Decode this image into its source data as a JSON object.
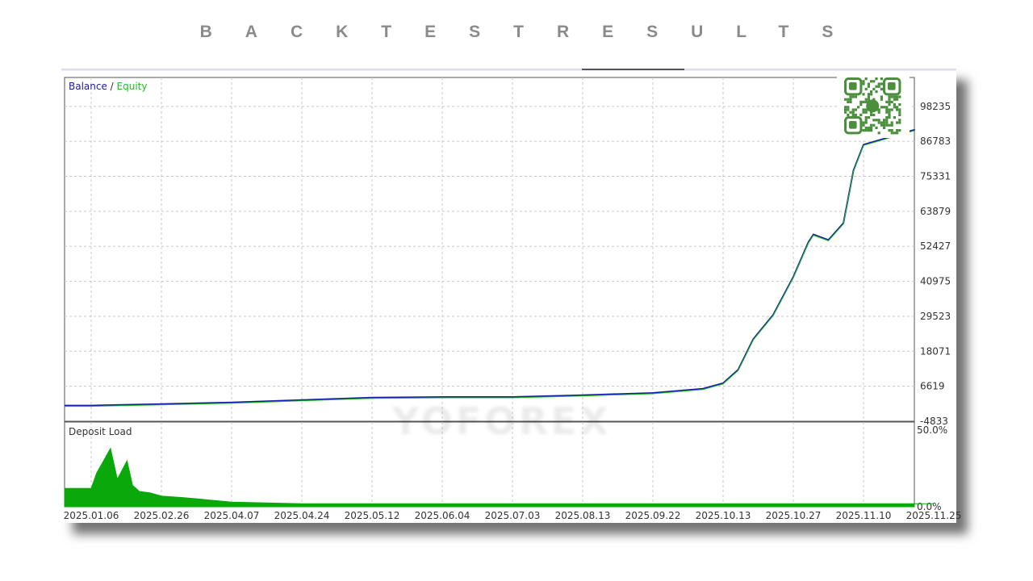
{
  "page_title": "BACKTESTRESULTS",
  "watermark": "YOFOREX",
  "colors": {
    "balance": "#1a1aa8",
    "equity": "#1fbf1f",
    "deposit_load": "#0aa80a",
    "grid": "#c8c8c8",
    "qr": "#4a8f3c"
  },
  "chart_data": [
    {
      "type": "line",
      "legend": {
        "balance": "Balance",
        "separator": " / ",
        "equity": "Equity",
        "placement": "top-left"
      },
      "ylim": [
        -4833,
        107700
      ],
      "y_ticks": [
        "98235",
        "86783",
        "75331",
        "63879",
        "52427",
        "40975",
        "29523",
        "18071",
        "6619",
        "-4833"
      ],
      "grid": true,
      "series": [
        {
          "name": "Balance",
          "x": [
            "2025.01.06",
            "2025.02.26",
            "2025.04.07",
            "2025.04.24",
            "2025.05.12",
            "2025.06.04",
            "2025.07.03",
            "2025.08.13",
            "2025.09.22",
            "2025.10.07",
            "2025.10.13",
            "2025.10.16",
            "2025.10.19",
            "2025.10.23",
            "2025.10.27",
            "2025.10.30",
            "2025.10.31",
            "2025.11.03",
            "2025.11.06",
            "2025.11.08",
            "2025.11.10",
            "2025.11.21"
          ],
          "values": [
            300,
            800,
            1300,
            2100,
            2900,
            3100,
            3100,
            3700,
            4400,
            5800,
            7600,
            12000,
            22000,
            30000,
            42400,
            53700,
            56300,
            54500,
            60000,
            77300,
            85700,
            90600
          ]
        },
        {
          "name": "Equity",
          "x": [
            "2025.01.06",
            "2025.02.26",
            "2025.04.07",
            "2025.04.24",
            "2025.05.12",
            "2025.06.04",
            "2025.07.03",
            "2025.08.13",
            "2025.09.22",
            "2025.10.07",
            "2025.10.13",
            "2025.10.16",
            "2025.10.19",
            "2025.10.23",
            "2025.10.27",
            "2025.10.30",
            "2025.10.31",
            "2025.11.03",
            "2025.11.06",
            "2025.11.08",
            "2025.11.10",
            "2025.11.21"
          ],
          "values": [
            300,
            800,
            1300,
            2100,
            2900,
            3100,
            3100,
            3700,
            4400,
            5800,
            7600,
            12000,
            22000,
            30000,
            42400,
            53700,
            56300,
            54500,
            60000,
            77300,
            85700,
            90600
          ]
        }
      ]
    },
    {
      "type": "area",
      "title": "Deposit Load",
      "ylim": [
        0,
        50
      ],
      "y_ticks": [
        "50.0%",
        "0.0%"
      ],
      "x_ticks": [
        "2025.01.06",
        "2025.02.26",
        "2025.04.07",
        "2025.04.24",
        "2025.05.12",
        "2025.06.04",
        "2025.07.03",
        "2025.08.13",
        "2025.09.22",
        "2025.10.13",
        "2025.10.27",
        "2025.11.10",
        "2025.11.25"
      ],
      "series": [
        {
          "x": [
            "2025.01.06",
            "2025.01.10",
            "2025.01.20",
            "2025.01.25",
            "2025.02.01",
            "2025.02.05",
            "2025.02.10",
            "2025.02.18",
            "2025.02.26",
            "2025.03.10",
            "2025.03.20",
            "2025.04.07",
            "2025.04.24",
            "2025.06.04",
            "2025.08.13",
            "2025.10.13",
            "2025.11.10",
            "2025.11.25"
          ],
          "values": [
            12,
            22,
            38,
            18,
            30,
            14,
            10,
            9,
            7,
            6,
            5,
            3,
            2,
            2,
            2,
            2,
            2,
            2
          ]
        }
      ]
    }
  ]
}
